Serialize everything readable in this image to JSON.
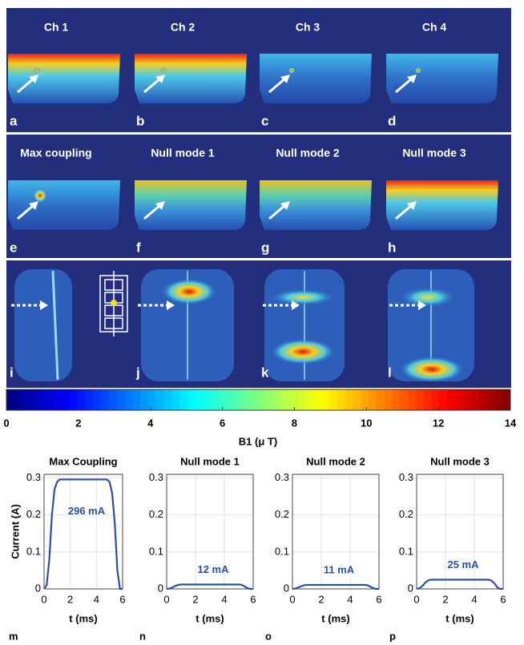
{
  "figure": {
    "row1_labels": [
      "Ch 1",
      "Ch 2",
      "Ch 3",
      "Ch 4"
    ],
    "row2_labels": [
      "Max coupling",
      "Null mode 1",
      "Null mode 2",
      "Null mode 3"
    ],
    "image_letters": [
      "a",
      "b",
      "c",
      "d",
      "e",
      "f",
      "g",
      "h",
      "i",
      "j",
      "k",
      "l"
    ]
  },
  "chart_data": [
    {
      "type": "colorbar",
      "xlabel": "B1 (μ T)",
      "xlim": [
        0,
        14
      ],
      "xticks": [
        0,
        2,
        4,
        6,
        8,
        10,
        12,
        14
      ],
      "colormap": "jet"
    },
    {
      "type": "line",
      "title": "Max Coupling",
      "panel": "m",
      "annotation": "296 mA",
      "ylabel": "Current (A)",
      "xlabel": "t (ms)",
      "x": [
        0,
        0.2,
        0.4,
        0.6,
        0.8,
        1.0,
        1.2,
        2,
        3,
        4,
        4.8,
        5.0,
        5.2,
        5.4,
        5.6,
        5.8,
        6
      ],
      "values": [
        0,
        0.01,
        0.08,
        0.2,
        0.27,
        0.29,
        0.296,
        0.296,
        0.296,
        0.296,
        0.296,
        0.29,
        0.26,
        0.18,
        0.05,
        0,
        0
      ],
      "color": "#2b4fa3",
      "xlim": [
        0,
        6
      ],
      "xticks": [
        0,
        2,
        4,
        6
      ],
      "ylim": [
        0,
        0.31
      ],
      "yticks": [
        0,
        0.1,
        0.2,
        0.3
      ],
      "grid": true
    },
    {
      "type": "line",
      "title": "Null mode 1",
      "panel": "n",
      "annotation": "12 mA",
      "xlabel": "t (ms)",
      "x": [
        0,
        0.2,
        0.4,
        0.6,
        0.8,
        1.0,
        1.2,
        2,
        3,
        4,
        4.8,
        5.0,
        5.2,
        5.4,
        5.6,
        5.8,
        6
      ],
      "values": [
        0,
        0.001,
        0.004,
        0.008,
        0.011,
        0.012,
        0.012,
        0.012,
        0.012,
        0.012,
        0.012,
        0.012,
        0.011,
        0.007,
        0.002,
        0,
        0
      ],
      "color": "#2b4fa3",
      "xlim": [
        0,
        6
      ],
      "xticks": [
        0,
        2,
        4,
        6
      ],
      "ylim": [
        0,
        0.31
      ],
      "yticks": [
        0,
        0.1,
        0.2,
        0.3
      ],
      "grid": true
    },
    {
      "type": "line",
      "title": "Null mode 2",
      "panel": "o",
      "annotation": "11 mA",
      "xlabel": "t (ms)",
      "x": [
        0,
        0.2,
        0.4,
        0.6,
        0.8,
        1.0,
        1.2,
        2,
        3,
        4,
        4.8,
        5.0,
        5.2,
        5.4,
        5.6,
        5.8,
        6
      ],
      "values": [
        0,
        0.001,
        0.004,
        0.007,
        0.01,
        0.011,
        0.011,
        0.011,
        0.011,
        0.011,
        0.011,
        0.011,
        0.01,
        0.006,
        0.002,
        0,
        0
      ],
      "color": "#2b4fa3",
      "xlim": [
        0,
        6
      ],
      "xticks": [
        0,
        2,
        4,
        6
      ],
      "ylim": [
        0,
        0.31
      ],
      "yticks": [
        0,
        0.1,
        0.2,
        0.3
      ],
      "grid": true
    },
    {
      "type": "line",
      "title": "Null mode 3",
      "panel": "p",
      "annotation": "25 mA",
      "xlabel": "t (ms)",
      "x": [
        0,
        0.2,
        0.4,
        0.6,
        0.8,
        1.0,
        1.2,
        2,
        3,
        4,
        4.8,
        5.0,
        5.2,
        5.4,
        5.6,
        5.8,
        6
      ],
      "values": [
        0,
        0.002,
        0.008,
        0.017,
        0.023,
        0.025,
        0.025,
        0.025,
        0.025,
        0.025,
        0.025,
        0.025,
        0.022,
        0.015,
        0.004,
        0,
        0
      ],
      "color": "#2b4fa3",
      "xlim": [
        0,
        6
      ],
      "xticks": [
        0,
        2,
        4,
        6
      ],
      "ylim": [
        0,
        0.31
      ],
      "yticks": [
        0,
        0.1,
        0.2,
        0.3
      ],
      "grid": true
    }
  ]
}
